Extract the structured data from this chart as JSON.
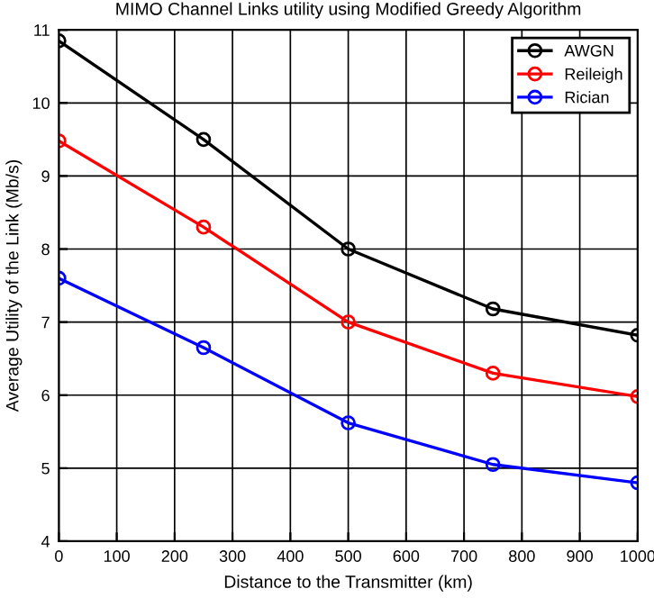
{
  "chart_data": {
    "type": "line",
    "title": "MIMO Channel Links utility using Modified Greedy Algorithm",
    "xlabel": "Distance to the Transmitter (km)",
    "ylabel": "Average Utility of the Link (Mb/s)",
    "x": [
      0,
      250,
      500,
      750,
      1000
    ],
    "series": [
      {
        "name": "AWGN",
        "color": "#000000",
        "values": [
          10.85,
          9.5,
          8.0,
          7.18,
          6.82
        ]
      },
      {
        "name": "Reileigh",
        "color": "#ff0000",
        "values": [
          9.48,
          8.3,
          7.0,
          6.3,
          5.98
        ]
      },
      {
        "name": "Rician",
        "color": "#0000ff",
        "values": [
          7.6,
          6.65,
          5.62,
          5.05,
          4.8
        ]
      }
    ],
    "xlim": [
      0,
      1000
    ],
    "xticks": [
      0,
      100,
      200,
      300,
      400,
      500,
      600,
      700,
      800,
      900,
      1000
    ],
    "ylim": [
      4,
      11
    ],
    "yticks": [
      4,
      5,
      6,
      7,
      8,
      9,
      10,
      11
    ],
    "grid": true,
    "legend": "top right",
    "marker": "circle",
    "line_style": "solid"
  }
}
